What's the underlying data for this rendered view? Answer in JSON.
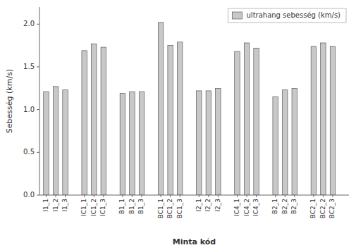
{
  "chart_data": {
    "type": "bar",
    "xlabel": "Minta kód",
    "ylabel": "Sebesség (km/s)",
    "categories": [
      "I1_1",
      "I1_2",
      "I1_3",
      null,
      "IC1_1",
      "IC1_2",
      "IC1_3",
      null,
      "B1_1",
      "B1_2",
      "B1_3",
      null,
      "BC1_1",
      "BC1_2",
      "BC1_3",
      null,
      "I2_1",
      "I2_2",
      "I2_3",
      null,
      "IC4_1",
      "IC4_2",
      "IC4_3",
      null,
      "B2_1",
      "B2_2",
      "B2_3",
      null,
      "BC2_1",
      "BC2_2",
      "BC2_3",
      null
    ],
    "series": [
      {
        "name": "ultrahang sebesség (km/s)",
        "color": "#c8c8c8",
        "values": [
          1.21,
          1.27,
          1.23,
          null,
          1.69,
          1.77,
          1.73,
          null,
          1.19,
          1.21,
          1.21,
          null,
          2.02,
          1.75,
          1.79,
          null,
          1.22,
          1.22,
          1.25,
          null,
          1.68,
          1.78,
          1.72,
          null,
          1.15,
          1.23,
          1.25,
          null,
          1.74,
          1.78,
          1.74,
          null
        ]
      }
    ],
    "ylim": [
      0.0,
      2.2
    ],
    "yticks": [
      {
        "value": 0.0,
        "label": "0.0"
      },
      0.5,
      {
        "value": 1.0,
        "label": "1.0"
      },
      1.5,
      {
        "value": 2.0,
        "label": "2.0"
      }
    ],
    "grid": false,
    "legend": "upper right"
  }
}
